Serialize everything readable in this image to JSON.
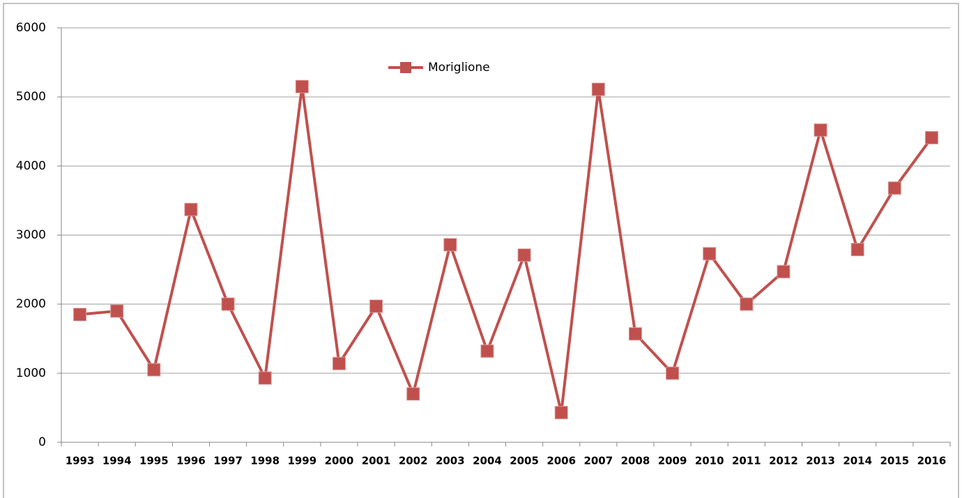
{
  "chart_data": {
    "type": "line",
    "categories": [
      "1993",
      "1994",
      "1995",
      "1996",
      "1997",
      "1998",
      "1999",
      "2000",
      "2001",
      "2002",
      "2003",
      "2004",
      "2005",
      "2006",
      "2007",
      "2008",
      "2009",
      "2010",
      "2011",
      "2012",
      "2013",
      "2014",
      "2015",
      "2016"
    ],
    "series": [
      {
        "name": "Moriglione",
        "color": "#c0504d",
        "values": [
          1850,
          1900,
          1050,
          3370,
          2000,
          930,
          5150,
          1140,
          1970,
          700,
          2860,
          1320,
          2710,
          430,
          5110,
          1570,
          1000,
          2730,
          2000,
          2470,
          4520,
          2790,
          3680,
          4410
        ]
      }
    ],
    "ylim": [
      0,
      6000
    ],
    "yticks": [
      0,
      1000,
      2000,
      3000,
      4000,
      5000,
      6000
    ],
    "grid": true,
    "legend": "top"
  }
}
